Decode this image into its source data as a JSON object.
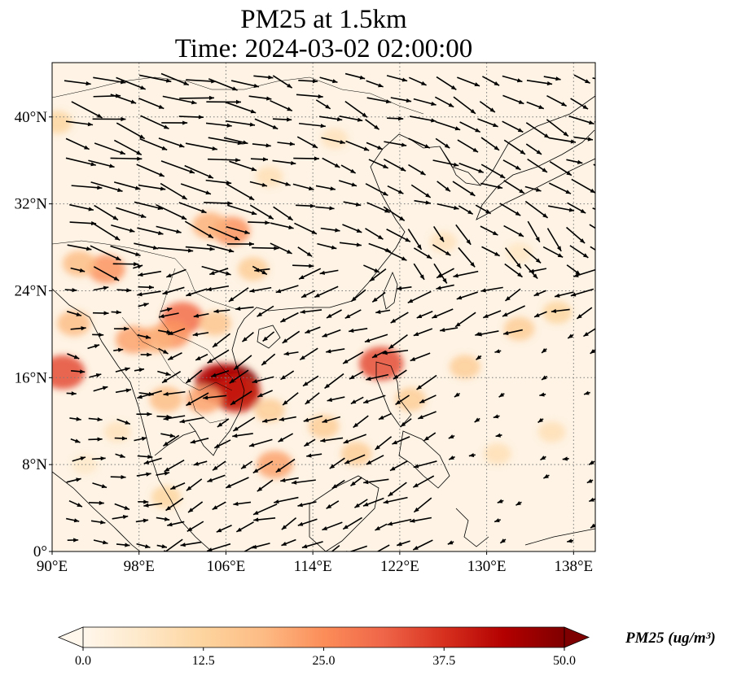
{
  "title": {
    "line1": "PM25 at 1.5km",
    "line2": "Time: 2024-03-02 02:00:00"
  },
  "map": {
    "projection": "PlateCarree",
    "lon_range": [
      90,
      140
    ],
    "lat_range": [
      0,
      45
    ],
    "lon_ticks": [
      {
        "value": 90,
        "label": "90°E"
      },
      {
        "value": 98,
        "label": "98°E"
      },
      {
        "value": 106,
        "label": "106°E"
      },
      {
        "value": 114,
        "label": "114°E"
      },
      {
        "value": 122,
        "label": "122°E"
      },
      {
        "value": 130,
        "label": "130°E"
      },
      {
        "value": 138,
        "label": "138°E"
      }
    ],
    "lat_ticks": [
      {
        "value": 0,
        "label": "0°"
      },
      {
        "value": 8,
        "label": "8°N"
      },
      {
        "value": 16,
        "label": "16°N"
      },
      {
        "value": 24,
        "label": "24°N"
      },
      {
        "value": 32,
        "label": "32°N"
      },
      {
        "value": 40,
        "label": "40°N"
      }
    ],
    "gridlines": "dotted",
    "field_variable": "PM25",
    "overlay": "wind vectors",
    "hotspots": [
      {
        "lon": 106.5,
        "lat": 15.3,
        "value": 50
      },
      {
        "lon": 105.5,
        "lat": 15.5,
        "value": 44
      },
      {
        "lon": 107.0,
        "lat": 14.5,
        "value": 40
      },
      {
        "lon": 104.0,
        "lat": 14.0,
        "value": 22
      },
      {
        "lon": 102.0,
        "lat": 21.5,
        "value": 30
      },
      {
        "lon": 101.0,
        "lat": 20.0,
        "value": 24
      },
      {
        "lon": 105.0,
        "lat": 21.0,
        "value": 16
      },
      {
        "lon": 99.5,
        "lat": 19.5,
        "value": 20
      },
      {
        "lon": 97.5,
        "lat": 19.5,
        "value": 22
      },
      {
        "lon": 91.0,
        "lat": 16.5,
        "value": 34
      },
      {
        "lon": 92.0,
        "lat": 21.0,
        "value": 18
      },
      {
        "lon": 95.0,
        "lat": 26.0,
        "value": 24
      },
      {
        "lon": 92.5,
        "lat": 26.5,
        "value": 18
      },
      {
        "lon": 106.5,
        "lat": 29.5,
        "value": 24
      },
      {
        "lon": 104.5,
        "lat": 30.0,
        "value": 20
      },
      {
        "lon": 108.5,
        "lat": 26.0,
        "value": 14
      },
      {
        "lon": 110.0,
        "lat": 13.0,
        "value": 14
      },
      {
        "lon": 110.5,
        "lat": 8.0,
        "value": 22
      },
      {
        "lon": 100.5,
        "lat": 14.0,
        "value": 18
      },
      {
        "lon": 100.5,
        "lat": 5.0,
        "value": 12
      },
      {
        "lon": 120.3,
        "lat": 17.3,
        "value": 34
      },
      {
        "lon": 115.0,
        "lat": 11.5,
        "value": 14
      },
      {
        "lon": 118.0,
        "lat": 9.0,
        "value": 14
      },
      {
        "lon": 123.0,
        "lat": 14.0,
        "value": 14
      },
      {
        "lon": 128.0,
        "lat": 17.0,
        "value": 14
      },
      {
        "lon": 133.0,
        "lat": 20.5,
        "value": 14
      },
      {
        "lon": 136.5,
        "lat": 22.0,
        "value": 12
      },
      {
        "lon": 131.0,
        "lat": 9.0,
        "value": 9
      },
      {
        "lon": 136.0,
        "lat": 11.0,
        "value": 9
      },
      {
        "lon": 110.0,
        "lat": 34.5,
        "value": 9
      },
      {
        "lon": 116.0,
        "lat": 38.0,
        "value": 8
      },
      {
        "lon": 126.0,
        "lat": 28.5,
        "value": 8
      },
      {
        "lon": 133.0,
        "lat": 27.5,
        "value": 7
      },
      {
        "lon": 96.0,
        "lat": 11.0,
        "value": 8
      },
      {
        "lon": 93.0,
        "lat": 8.0,
        "value": 6
      },
      {
        "lon": 90.5,
        "lat": 39.5,
        "value": 12
      }
    ]
  },
  "colorbar": {
    "label": "PM25 (ug/m³)",
    "min": 0,
    "max": 50,
    "extend": "both",
    "ticks": [
      {
        "value": 0,
        "label": "0.0"
      },
      {
        "value": 12.5,
        "label": "12.5"
      },
      {
        "value": 25,
        "label": "25.0"
      },
      {
        "value": 37.5,
        "label": "37.5"
      },
      {
        "value": 50,
        "label": "50.0"
      }
    ],
    "colormap": [
      "#fff7ec",
      "#fee8c8",
      "#fdd49e",
      "#fdbb84",
      "#fc8d59",
      "#ef6548",
      "#d7301f",
      "#b30000",
      "#7f0000"
    ]
  },
  "colors": {
    "background_field": "#fef3e4",
    "coastline": "#000000",
    "vectors": "#000000",
    "gridline": "#7a7a7a"
  }
}
